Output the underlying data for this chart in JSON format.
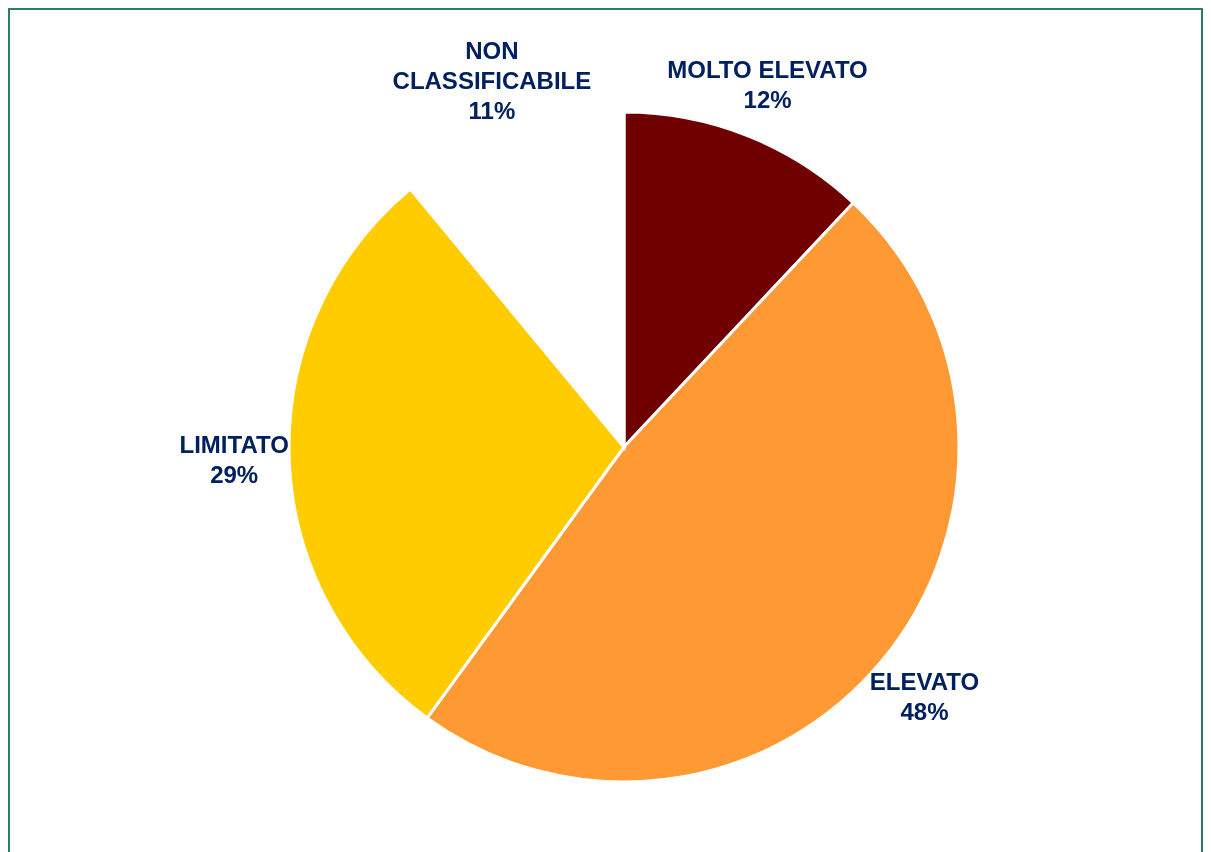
{
  "chart_data": {
    "type": "pie",
    "categories": [
      "MOLTO ELEVATO",
      "ELEVATO",
      "LIMITATO",
      "NON CLASSIFICABILE"
    ],
    "values": [
      12,
      48,
      29,
      11
    ],
    "value_labels": [
      "12%",
      "48%",
      "29%",
      "11%"
    ],
    "colors": [
      "#700000",
      "#ff9933",
      "#ffcc00",
      "#ffffff"
    ],
    "legend": false
  }
}
